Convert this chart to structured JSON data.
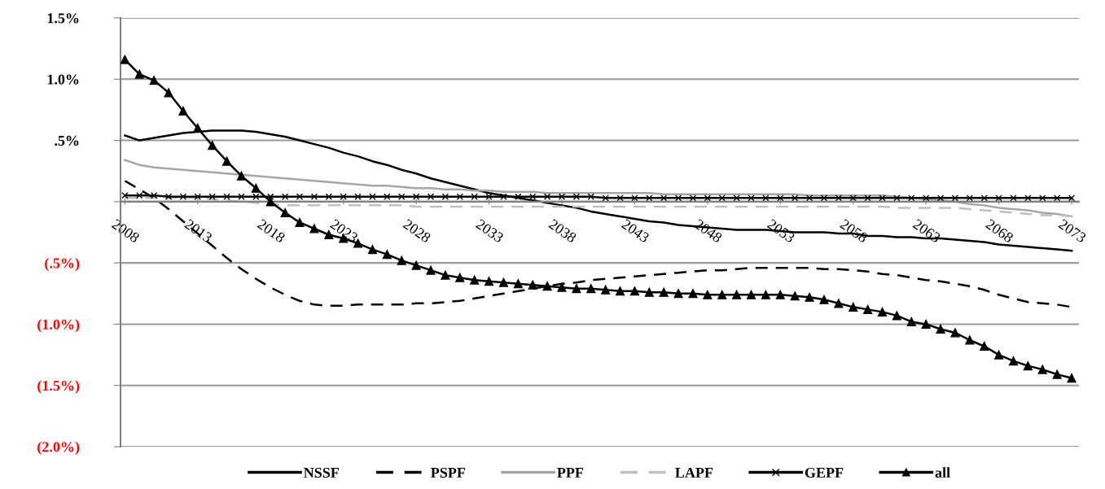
{
  "chart_data": {
    "type": "line",
    "categories": [
      "2008",
      null,
      null,
      null,
      null,
      "2013",
      null,
      null,
      null,
      null,
      "2018",
      null,
      null,
      null,
      null,
      "2023",
      null,
      null,
      null,
      null,
      "2028",
      null,
      null,
      null,
      null,
      "2033",
      null,
      null,
      null,
      null,
      "2038",
      null,
      null,
      null,
      null,
      "2043",
      null,
      null,
      null,
      null,
      "2048",
      null,
      null,
      null,
      null,
      "2053",
      null,
      null,
      null,
      null,
      "2058",
      null,
      null,
      null,
      null,
      "2063",
      null,
      null,
      null,
      null,
      "2068",
      null,
      null,
      null,
      null,
      "2073"
    ],
    "ylim": [
      -2.0,
      1.5
    ],
    "yticks": [
      {
        "value": 1.5,
        "label": "1.5%"
      },
      {
        "value": 1.0,
        "label": "1.0%"
      },
      {
        "value": 0.5,
        "label": ".5%"
      },
      {
        "value": 0,
        "label": null
      },
      {
        "value": -0.5,
        "label": "(.5%)"
      },
      {
        "value": -1.0,
        "label": "(1.0%)"
      },
      {
        "value": -1.5,
        "label": "(1.5%)"
      },
      {
        "value": -2.0,
        "label": "(2.0%)"
      }
    ],
    "grid": "y",
    "legend": "bottom",
    "series": [
      {
        "name": "NSSF",
        "color": "#000000",
        "line_style": "solid",
        "values": [
          0.54,
          0.5,
          0.52,
          0.54,
          0.56,
          0.57,
          0.58,
          0.58,
          0.58,
          0.57,
          0.55,
          0.53,
          0.5,
          0.47,
          0.44,
          0.4,
          0.37,
          0.33,
          0.3,
          0.26,
          0.23,
          0.19,
          0.16,
          0.13,
          0.1,
          0.07,
          0.05,
          0.03,
          0.01,
          -0.01,
          -0.03,
          -0.05,
          -0.08,
          -0.1,
          -0.12,
          -0.14,
          -0.16,
          -0.17,
          -0.19,
          -0.2,
          -0.21,
          -0.22,
          -0.23,
          -0.23,
          -0.23,
          -0.24,
          -0.25,
          -0.25,
          -0.25,
          -0.26,
          -0.26,
          -0.28,
          -0.28,
          -0.29,
          -0.29,
          -0.3,
          -0.3,
          -0.31,
          -0.32,
          -0.33,
          -0.35,
          -0.36,
          -0.37,
          -0.38,
          -0.39,
          -0.4
        ]
      },
      {
        "name": "PSPF",
        "color": "#000000",
        "line_style": "dashed",
        "values": [
          0.17,
          0.1,
          0.03,
          -0.06,
          -0.16,
          -0.26,
          -0.36,
          -0.46,
          -0.55,
          -0.63,
          -0.7,
          -0.76,
          -0.81,
          -0.84,
          -0.85,
          -0.85,
          -0.84,
          -0.84,
          -0.84,
          -0.84,
          -0.83,
          -0.83,
          -0.82,
          -0.81,
          -0.79,
          -0.77,
          -0.75,
          -0.73,
          -0.71,
          -0.69,
          -0.67,
          -0.66,
          -0.64,
          -0.63,
          -0.62,
          -0.61,
          -0.6,
          -0.59,
          -0.58,
          -0.57,
          -0.56,
          -0.56,
          -0.55,
          -0.54,
          -0.54,
          -0.54,
          -0.54,
          -0.54,
          -0.55,
          -0.55,
          -0.56,
          -0.57,
          -0.59,
          -0.6,
          -0.62,
          -0.64,
          -0.65,
          -0.67,
          -0.69,
          -0.72,
          -0.76,
          -0.79,
          -0.82,
          -0.83,
          -0.84,
          -0.86
        ]
      },
      {
        "name": "PPF",
        "color": "#a6a6a6",
        "line_style": "solid",
        "values": [
          0.34,
          0.3,
          0.28,
          0.27,
          0.26,
          0.25,
          0.24,
          0.23,
          0.22,
          0.21,
          0.2,
          0.19,
          0.18,
          0.17,
          0.16,
          0.15,
          0.14,
          0.13,
          0.13,
          0.12,
          0.11,
          0.11,
          0.1,
          0.1,
          0.09,
          0.09,
          0.08,
          0.08,
          0.08,
          0.07,
          0.07,
          0.07,
          0.07,
          0.07,
          0.07,
          0.07,
          0.07,
          0.06,
          0.06,
          0.06,
          0.06,
          0.06,
          0.06,
          0.06,
          0.06,
          0.06,
          0.06,
          0.05,
          0.05,
          0.05,
          0.05,
          0.05,
          0.05,
          0.04,
          0.03,
          0.02,
          0.01,
          0.0,
          -0.02,
          -0.03,
          -0.05,
          -0.06,
          -0.07,
          -0.09,
          -0.1,
          -0.12
        ]
      },
      {
        "name": "LAPF",
        "color": "#bfbfbf",
        "line_style": "dashed",
        "values": [
          0.03,
          0.03,
          0.03,
          0.03,
          0.03,
          0.03,
          0.02,
          0.01,
          0.0,
          -0.01,
          -0.02,
          -0.03,
          -0.03,
          -0.03,
          -0.03,
          -0.03,
          -0.03,
          -0.03,
          -0.03,
          -0.03,
          -0.04,
          -0.04,
          -0.04,
          -0.04,
          -0.04,
          -0.04,
          -0.04,
          -0.04,
          -0.04,
          -0.04,
          -0.04,
          -0.04,
          -0.04,
          -0.04,
          -0.04,
          -0.04,
          -0.04,
          -0.04,
          -0.04,
          -0.04,
          -0.04,
          -0.04,
          -0.04,
          -0.04,
          -0.04,
          -0.04,
          -0.04,
          -0.04,
          -0.04,
          -0.04,
          -0.04,
          -0.04,
          -0.04,
          -0.05,
          -0.05,
          -0.05,
          -0.05,
          -0.05,
          -0.06,
          -0.07,
          -0.08,
          -0.09,
          -0.1,
          -0.11,
          -0.11,
          -0.12
        ]
      },
      {
        "name": "GEPF",
        "color": "#000000",
        "line_style": "solid",
        "marker": "cross",
        "values": [
          0.05,
          0.05,
          0.05,
          0.04,
          0.04,
          0.04,
          0.04,
          0.04,
          0.04,
          0.04,
          0.04,
          0.04,
          0.04,
          0.04,
          0.04,
          0.04,
          0.04,
          0.04,
          0.04,
          0.04,
          0.04,
          0.04,
          0.04,
          0.04,
          0.04,
          0.04,
          0.04,
          0.04,
          0.04,
          0.04,
          0.04,
          0.04,
          0.04,
          0.03,
          0.03,
          0.03,
          0.03,
          0.03,
          0.03,
          0.03,
          0.03,
          0.03,
          0.03,
          0.03,
          0.03,
          0.03,
          0.03,
          0.03,
          0.03,
          0.03,
          0.03,
          0.03,
          0.03,
          0.03,
          0.03,
          0.03,
          0.03,
          0.03,
          0.03,
          0.03,
          0.03,
          0.03,
          0.03,
          0.03,
          0.03,
          0.03
        ]
      },
      {
        "name": "all",
        "color": "#000000",
        "line_style": "solid",
        "marker": "triangle",
        "values": [
          1.16,
          1.04,
          0.99,
          0.89,
          0.74,
          0.6,
          0.46,
          0.33,
          0.21,
          0.11,
          0.0,
          -0.09,
          -0.17,
          -0.22,
          -0.27,
          -0.3,
          -0.34,
          -0.39,
          -0.43,
          -0.48,
          -0.52,
          -0.56,
          -0.6,
          -0.62,
          -0.64,
          -0.65,
          -0.66,
          -0.67,
          -0.68,
          -0.69,
          -0.7,
          -0.71,
          -0.71,
          -0.72,
          -0.73,
          -0.73,
          -0.74,
          -0.74,
          -0.75,
          -0.75,
          -0.76,
          -0.76,
          -0.76,
          -0.76,
          -0.76,
          -0.76,
          -0.77,
          -0.78,
          -0.8,
          -0.83,
          -0.86,
          -0.88,
          -0.9,
          -0.93,
          -0.98,
          -1.0,
          -1.04,
          -1.07,
          -1.13,
          -1.18,
          -1.25,
          -1.3,
          -1.34,
          -1.37,
          -1.41,
          -1.44
        ]
      }
    ]
  }
}
